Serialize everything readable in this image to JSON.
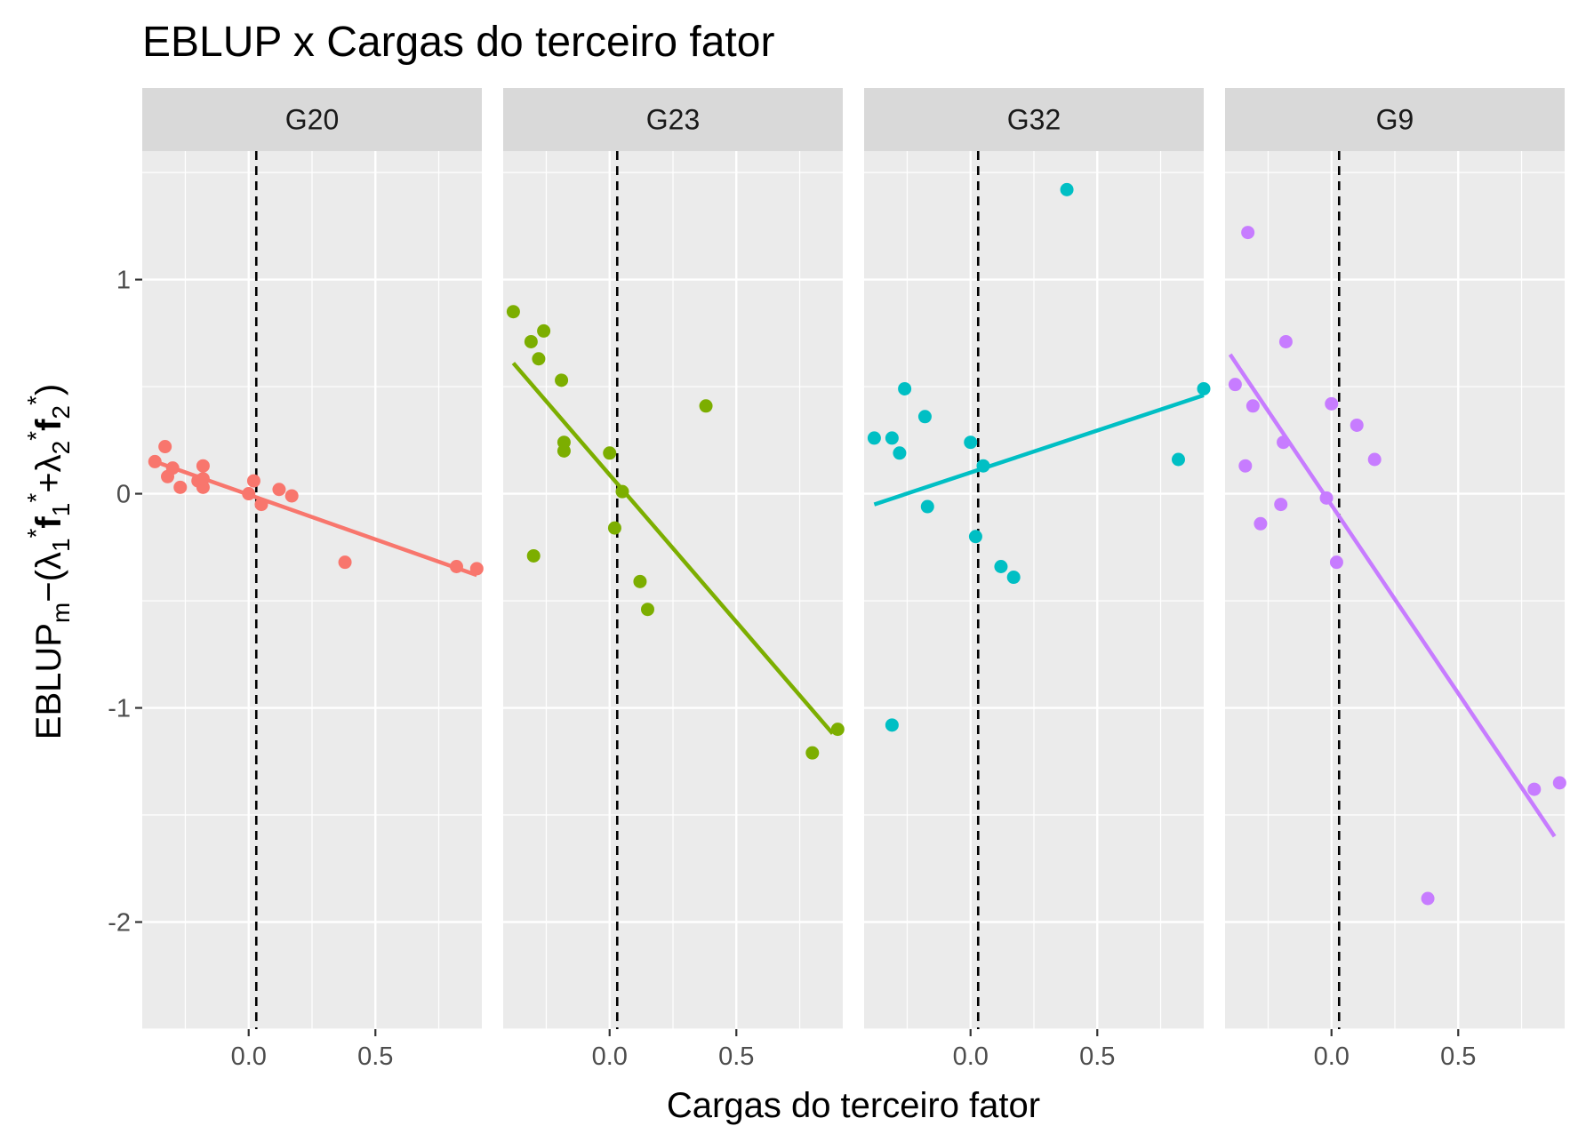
{
  "chart_data": {
    "type": "scatter",
    "title": "EBLUP x Cargas do terceiro fator",
    "xlabel": "Cargas do terceiro fator",
    "ylabel": "EBLUP_m − (λ1* f1* + λ2* f2*)",
    "ylabel_parts": {
      "main": "EBLUP",
      "sub_m": "m",
      "minus": "−(",
      "lambda": "λ",
      "f": "f",
      "plus": "+",
      "close": ")",
      "one": "1",
      "two": "2",
      "star": "*"
    },
    "xlim": [
      -0.42,
      0.92
    ],
    "ylim": [
      -2.5,
      1.6
    ],
    "x_ticks": [
      0.0,
      0.5
    ],
    "x_tick_labels": [
      "0.0",
      "0.5"
    ],
    "y_ticks": [
      -2,
      -1,
      0,
      1
    ],
    "y_tick_labels": [
      "-2",
      "-1",
      "0",
      "1"
    ],
    "reference_line": {
      "x": 0.03,
      "style": "dashed"
    },
    "panel_background": "#ebebeb",
    "strip_background": "#d9d9d9",
    "grid": true,
    "legend": "none",
    "panels": [
      {
        "label": "G20",
        "color": "#f8766d",
        "points": [
          [
            -0.37,
            0.15
          ],
          [
            -0.33,
            0.22
          ],
          [
            -0.32,
            0.08
          ],
          [
            -0.3,
            0.12
          ],
          [
            -0.27,
            0.03
          ],
          [
            -0.2,
            0.06
          ],
          [
            -0.18,
            0.03
          ],
          [
            -0.18,
            0.13
          ],
          [
            -0.18,
            0.07
          ],
          [
            0.0,
            0.0
          ],
          [
            0.02,
            0.06
          ],
          [
            0.05,
            -0.05
          ],
          [
            0.12,
            0.02
          ],
          [
            0.17,
            -0.01
          ],
          [
            0.38,
            -0.32
          ],
          [
            0.82,
            -0.34
          ],
          [
            0.9,
            -0.35
          ]
        ],
        "fit": [
          [
            -0.37,
            0.15
          ],
          [
            0.9,
            -0.38
          ]
        ]
      },
      {
        "label": "G23",
        "color": "#7cae00",
        "points": [
          [
            -0.38,
            0.85
          ],
          [
            -0.31,
            0.71
          ],
          [
            -0.28,
            0.63
          ],
          [
            -0.26,
            0.76
          ],
          [
            -0.19,
            0.53
          ],
          [
            -0.18,
            0.24
          ],
          [
            -0.18,
            0.2
          ],
          [
            -0.3,
            -0.29
          ],
          [
            0.0,
            0.19
          ],
          [
            0.02,
            -0.16
          ],
          [
            0.05,
            0.01
          ],
          [
            0.12,
            -0.41
          ],
          [
            0.15,
            -0.54
          ],
          [
            0.38,
            0.41
          ],
          [
            0.8,
            -1.21
          ],
          [
            0.9,
            -1.1
          ]
        ],
        "fit": [
          [
            -0.38,
            0.61
          ],
          [
            0.88,
            -1.12
          ]
        ]
      },
      {
        "label": "G32",
        "color": "#00bfc4",
        "points": [
          [
            -0.38,
            0.26
          ],
          [
            -0.31,
            0.26
          ],
          [
            -0.28,
            0.19
          ],
          [
            -0.26,
            0.49
          ],
          [
            -0.18,
            0.36
          ],
          [
            -0.17,
            -0.06
          ],
          [
            -0.31,
            -1.08
          ],
          [
            0.0,
            0.24
          ],
          [
            0.02,
            -0.2
          ],
          [
            0.05,
            0.13
          ],
          [
            0.12,
            -0.34
          ],
          [
            0.17,
            -0.39
          ],
          [
            0.38,
            1.42
          ],
          [
            0.82,
            0.16
          ],
          [
            0.92,
            0.49
          ]
        ],
        "fit": [
          [
            -0.38,
            -0.05
          ],
          [
            0.92,
            0.46
          ]
        ]
      },
      {
        "label": "G9",
        "color": "#c77cff",
        "points": [
          [
            -0.38,
            0.51
          ],
          [
            -0.33,
            1.22
          ],
          [
            -0.34,
            0.13
          ],
          [
            -0.31,
            0.41
          ],
          [
            -0.28,
            -0.14
          ],
          [
            -0.19,
            0.24
          ],
          [
            -0.18,
            0.71
          ],
          [
            -0.2,
            -0.05
          ],
          [
            -0.02,
            -0.02
          ],
          [
            0.0,
            0.42
          ],
          [
            0.02,
            -0.32
          ],
          [
            0.1,
            0.32
          ],
          [
            0.17,
            0.16
          ],
          [
            0.38,
            -1.89
          ],
          [
            0.8,
            -1.38
          ],
          [
            0.9,
            -1.35
          ]
        ],
        "fit": [
          [
            -0.4,
            0.65
          ],
          [
            0.88,
            -1.6
          ]
        ]
      }
    ]
  }
}
